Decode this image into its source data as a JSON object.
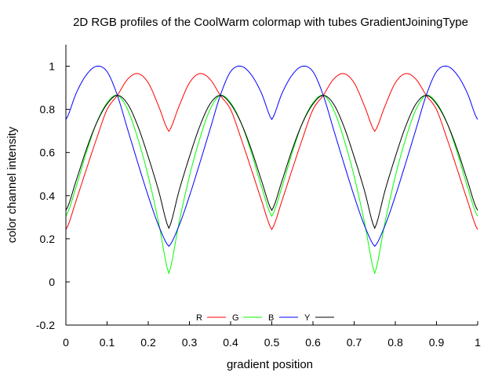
{
  "chart_data": {
    "type": "line",
    "title": "2D RGB profiles of the CoolWarm colormap with tubes GradientJoiningType",
    "xlabel": "gradient position",
    "ylabel": "color channel intensity",
    "xlim": [
      0,
      1
    ],
    "ylim": [
      -0.2,
      1.1
    ],
    "xticks": [
      "0",
      "0.1",
      "0.2",
      "0.3",
      "0.4",
      "0.5",
      "0.6",
      "0.7",
      "0.8",
      "0.9",
      "1"
    ],
    "yticks": [
      "-0.2",
      "0",
      "0.2",
      "0.4",
      "0.6",
      "0.8",
      "1"
    ],
    "grid": false,
    "legend": "bottom-center",
    "segments": [
      {
        "x_start": 0,
        "x_end": 0.25,
        "reversed": false
      },
      {
        "x_start": 0.25,
        "x_end": 0.5,
        "reversed": true
      },
      {
        "x_start": 0.5,
        "x_end": 0.75,
        "reversed": false
      },
      {
        "x_start": 0.75,
        "x_end": 1,
        "reversed": true
      }
    ],
    "segment_profile_t": [
      0,
      0.1,
      0.2,
      0.3,
      0.4,
      0.5,
      0.6,
      0.7,
      0.8,
      0.9,
      1
    ],
    "series": [
      {
        "name": "R",
        "color": "#ff0000",
        "profile": [
          0.243,
          0.378,
          0.524,
          0.667,
          0.799,
          0.865,
          0.94,
          0.966,
          0.923,
          0.816,
          0.698
        ]
      },
      {
        "name": "G",
        "color": "#00ff00",
        "profile": [
          0.305,
          0.442,
          0.602,
          0.74,
          0.83,
          0.865,
          0.799,
          0.663,
          0.49,
          0.277,
          0.04
        ]
      },
      {
        "name": "B",
        "color": "#0000ff",
        "profile": [
          0.753,
          0.875,
          0.961,
          1.0,
          0.975,
          0.865,
          0.707,
          0.55,
          0.398,
          0.262,
          0.165
        ]
      },
      {
        "name": "Y",
        "color": "#000000",
        "profile": [
          0.332,
          0.47,
          0.616,
          0.739,
          0.825,
          0.865,
          0.825,
          0.721,
          0.58,
          0.424,
          0.249
        ]
      }
    ]
  }
}
